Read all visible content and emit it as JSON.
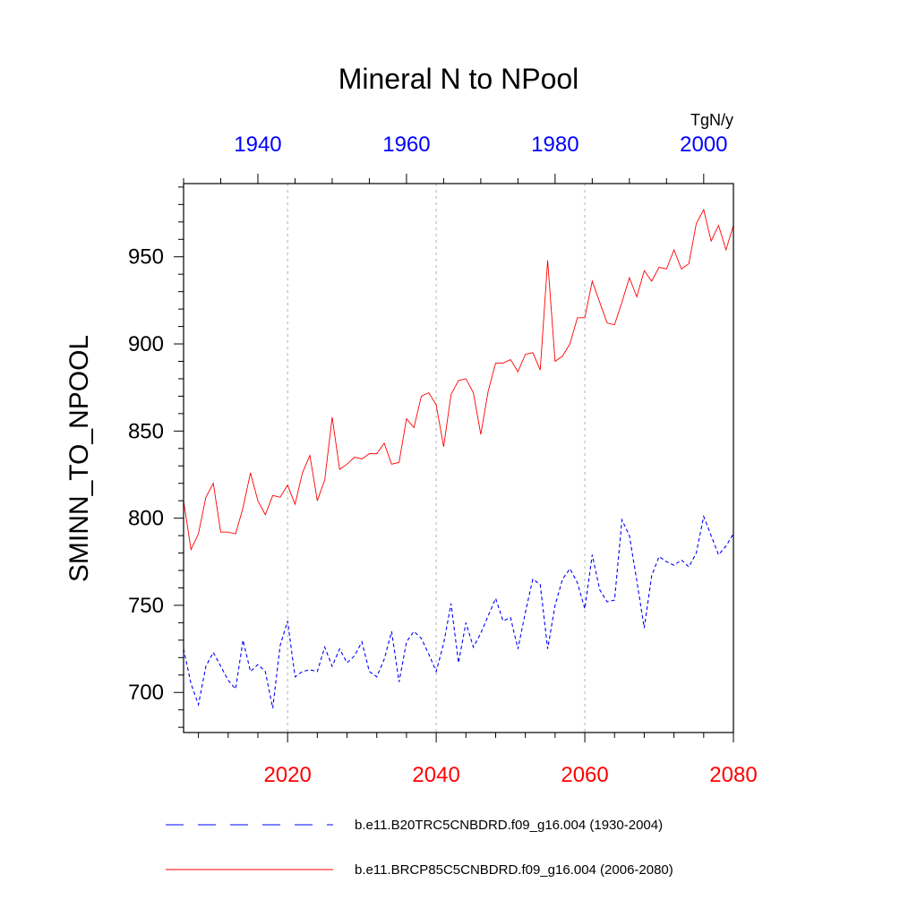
{
  "chart_data": {
    "type": "line",
    "title": "Mineral N to NPool",
    "ylabel": "SMINN_TO_NPOOL",
    "units": "TgN/y",
    "ylim": [
      677,
      992
    ],
    "yticks": [
      700,
      750,
      800,
      850,
      900,
      950
    ],
    "x_bottom": {
      "range": [
        2006,
        2080
      ],
      "ticks": [
        2020,
        2040,
        2060,
        2080
      ],
      "color": "#ff0000"
    },
    "x_top": {
      "range": [
        1930,
        2004
      ],
      "ticks": [
        1940,
        1960,
        1980,
        2000
      ],
      "color": "#0000ff"
    },
    "grid_x": [
      2020,
      2040,
      2060
    ],
    "legend_placement": "bottom",
    "series": [
      {
        "name": "b.e11.B20TRC5CNBDRD.f09_g16.004 (1930-2004)",
        "color": "#0000ff",
        "style": "dashed",
        "x_start": 1930,
        "values": [
          725,
          705,
          693,
          715,
          723,
          715,
          707,
          702,
          730,
          712,
          716,
          712,
          691,
          727,
          741,
          709,
          712,
          713,
          712,
          726,
          715,
          725,
          717,
          721,
          729,
          712,
          709,
          719,
          735,
          706,
          729,
          735,
          731,
          722,
          712,
          728,
          751,
          717,
          740,
          726,
          734,
          744,
          754,
          741,
          743,
          725,
          746,
          765,
          762,
          725,
          750,
          765,
          771,
          763,
          748,
          779,
          759,
          752,
          753,
          799,
          790,
          764,
          737,
          767,
          778,
          775,
          773,
          776,
          772,
          780,
          801,
          790,
          779,
          784,
          791
        ]
      },
      {
        "name": "b.e11.BRCP85C5CNBDRD.f09_g16.004 (2006-2080)",
        "color": "#ff0000",
        "style": "solid",
        "x_start": 2006,
        "values": [
          810,
          782,
          791,
          812,
          820,
          792,
          792,
          791,
          806,
          826,
          810,
          802,
          813,
          812,
          819,
          808,
          826,
          836,
          810,
          822,
          858,
          828,
          831,
          835,
          834,
          837,
          837,
          843,
          831,
          832,
          857,
          852,
          870,
          872,
          865,
          841,
          871,
          879,
          880,
          872,
          848,
          873,
          889,
          889,
          891,
          884,
          894,
          895,
          885,
          948,
          890,
          893,
          900,
          915,
          915,
          936,
          924,
          912,
          911,
          924,
          938,
          927,
          942,
          936,
          944,
          943,
          954,
          943,
          946,
          969,
          977,
          959,
          968,
          954,
          968
        ]
      }
    ]
  }
}
